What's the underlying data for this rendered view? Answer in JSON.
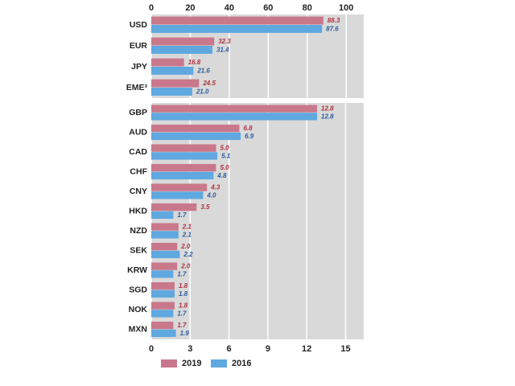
{
  "chart_data": [
    {
      "type": "hbar",
      "categories": [
        "USD",
        "EUR",
        "JPY",
        "EME³"
      ],
      "series": [
        {
          "color": "#c9788c",
          "values": [
            88.3,
            32.3,
            16.8,
            24.5
          ],
          "value_labels": [
            "88.3",
            "32.3",
            "16.8",
            "24.5"
          ]
        },
        {
          "color": "#5fa8e0",
          "values": [
            87.6,
            31.4,
            21.6,
            21.0
          ],
          "value_labels": [
            "87.6",
            "31.4",
            "21.6",
            "21.0"
          ]
        }
      ],
      "xlim": [
        0,
        109
      ],
      "xticks": [
        0,
        20,
        40,
        60,
        80,
        100
      ],
      "grid": true
    },
    {
      "type": "hbar",
      "categories": [
        "GBP",
        "AUD",
        "CAD",
        "CHF",
        "CNY",
        "HKD",
        "NZD",
        "SEK",
        "KRW",
        "SGD",
        "NOK",
        "MXN"
      ],
      "series": [
        {
          "name": "2019",
          "color": "#c9788c",
          "values": [
            12.8,
            6.8,
            5.0,
            5.0,
            4.3,
            3.5,
            2.1,
            2.0,
            2.0,
            1.8,
            1.8,
            1.7
          ],
          "value_labels": [
            "12.8",
            "6.8",
            "5.0",
            "5.0",
            "4.3",
            "3.5",
            "2.1",
            "2.0",
            "2.0",
            "1.8",
            "1.8",
            "1.7"
          ]
        },
        {
          "name": "2016",
          "color": "#5fa8e0",
          "values": [
            12.8,
            6.9,
            5.1,
            4.8,
            4.0,
            1.7,
            2.1,
            2.2,
            1.7,
            1.8,
            1.7,
            1.9
          ],
          "value_labels": [
            "12.8",
            "6.9",
            "5.1",
            "4.8",
            "4.0",
            "1.7",
            "2.1",
            "2.2",
            "1.7",
            "1.8",
            "1.7",
            "1.9"
          ]
        }
      ],
      "xlim": [
        0,
        16.4
      ],
      "xticks": [
        0,
        3,
        6,
        9,
        12,
        15
      ],
      "grid": true
    }
  ]
}
